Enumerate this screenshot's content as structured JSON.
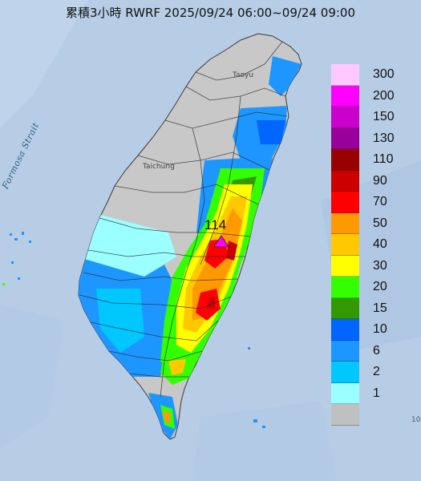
{
  "title": "累積3小時 RWRF 2025/09/24 06:00~09/24 09:00",
  "map": {
    "strait_label": "Formosa Strait",
    "cities": [
      {
        "name": "Taoyu"
      },
      {
        "name": "Taichung"
      }
    ],
    "peak_value": "114",
    "peak_marker_icon": "triangle-icon",
    "edge_text": "10",
    "sea_color": "#b7cde6",
    "land_color": "#c8c8c8"
  },
  "legend": {
    "items": [
      {
        "label": "300",
        "color": "#ffc8ff"
      },
      {
        "label": "200",
        "color": "#ff00ff"
      },
      {
        "label": "150",
        "color": "#cc00cc"
      },
      {
        "label": "130",
        "color": "#990099"
      },
      {
        "label": "110",
        "color": "#990000"
      },
      {
        "label": "90",
        "color": "#cc0000"
      },
      {
        "label": "70",
        "color": "#ff0000"
      },
      {
        "label": "50",
        "color": "#ff9900"
      },
      {
        "label": "40",
        "color": "#ffc800"
      },
      {
        "label": "30",
        "color": "#ffff00"
      },
      {
        "label": "20",
        "color": "#33ff00"
      },
      {
        "label": "15",
        "color": "#339900"
      },
      {
        "label": "10",
        "color": "#0066ff"
      },
      {
        "label": "6",
        "color": "#1e96ff"
      },
      {
        "label": "2",
        "color": "#00c8ff"
      },
      {
        "label": "1",
        "color": "#9bffff"
      },
      {
        "label": "",
        "color": "#c0c0c0"
      }
    ]
  }
}
